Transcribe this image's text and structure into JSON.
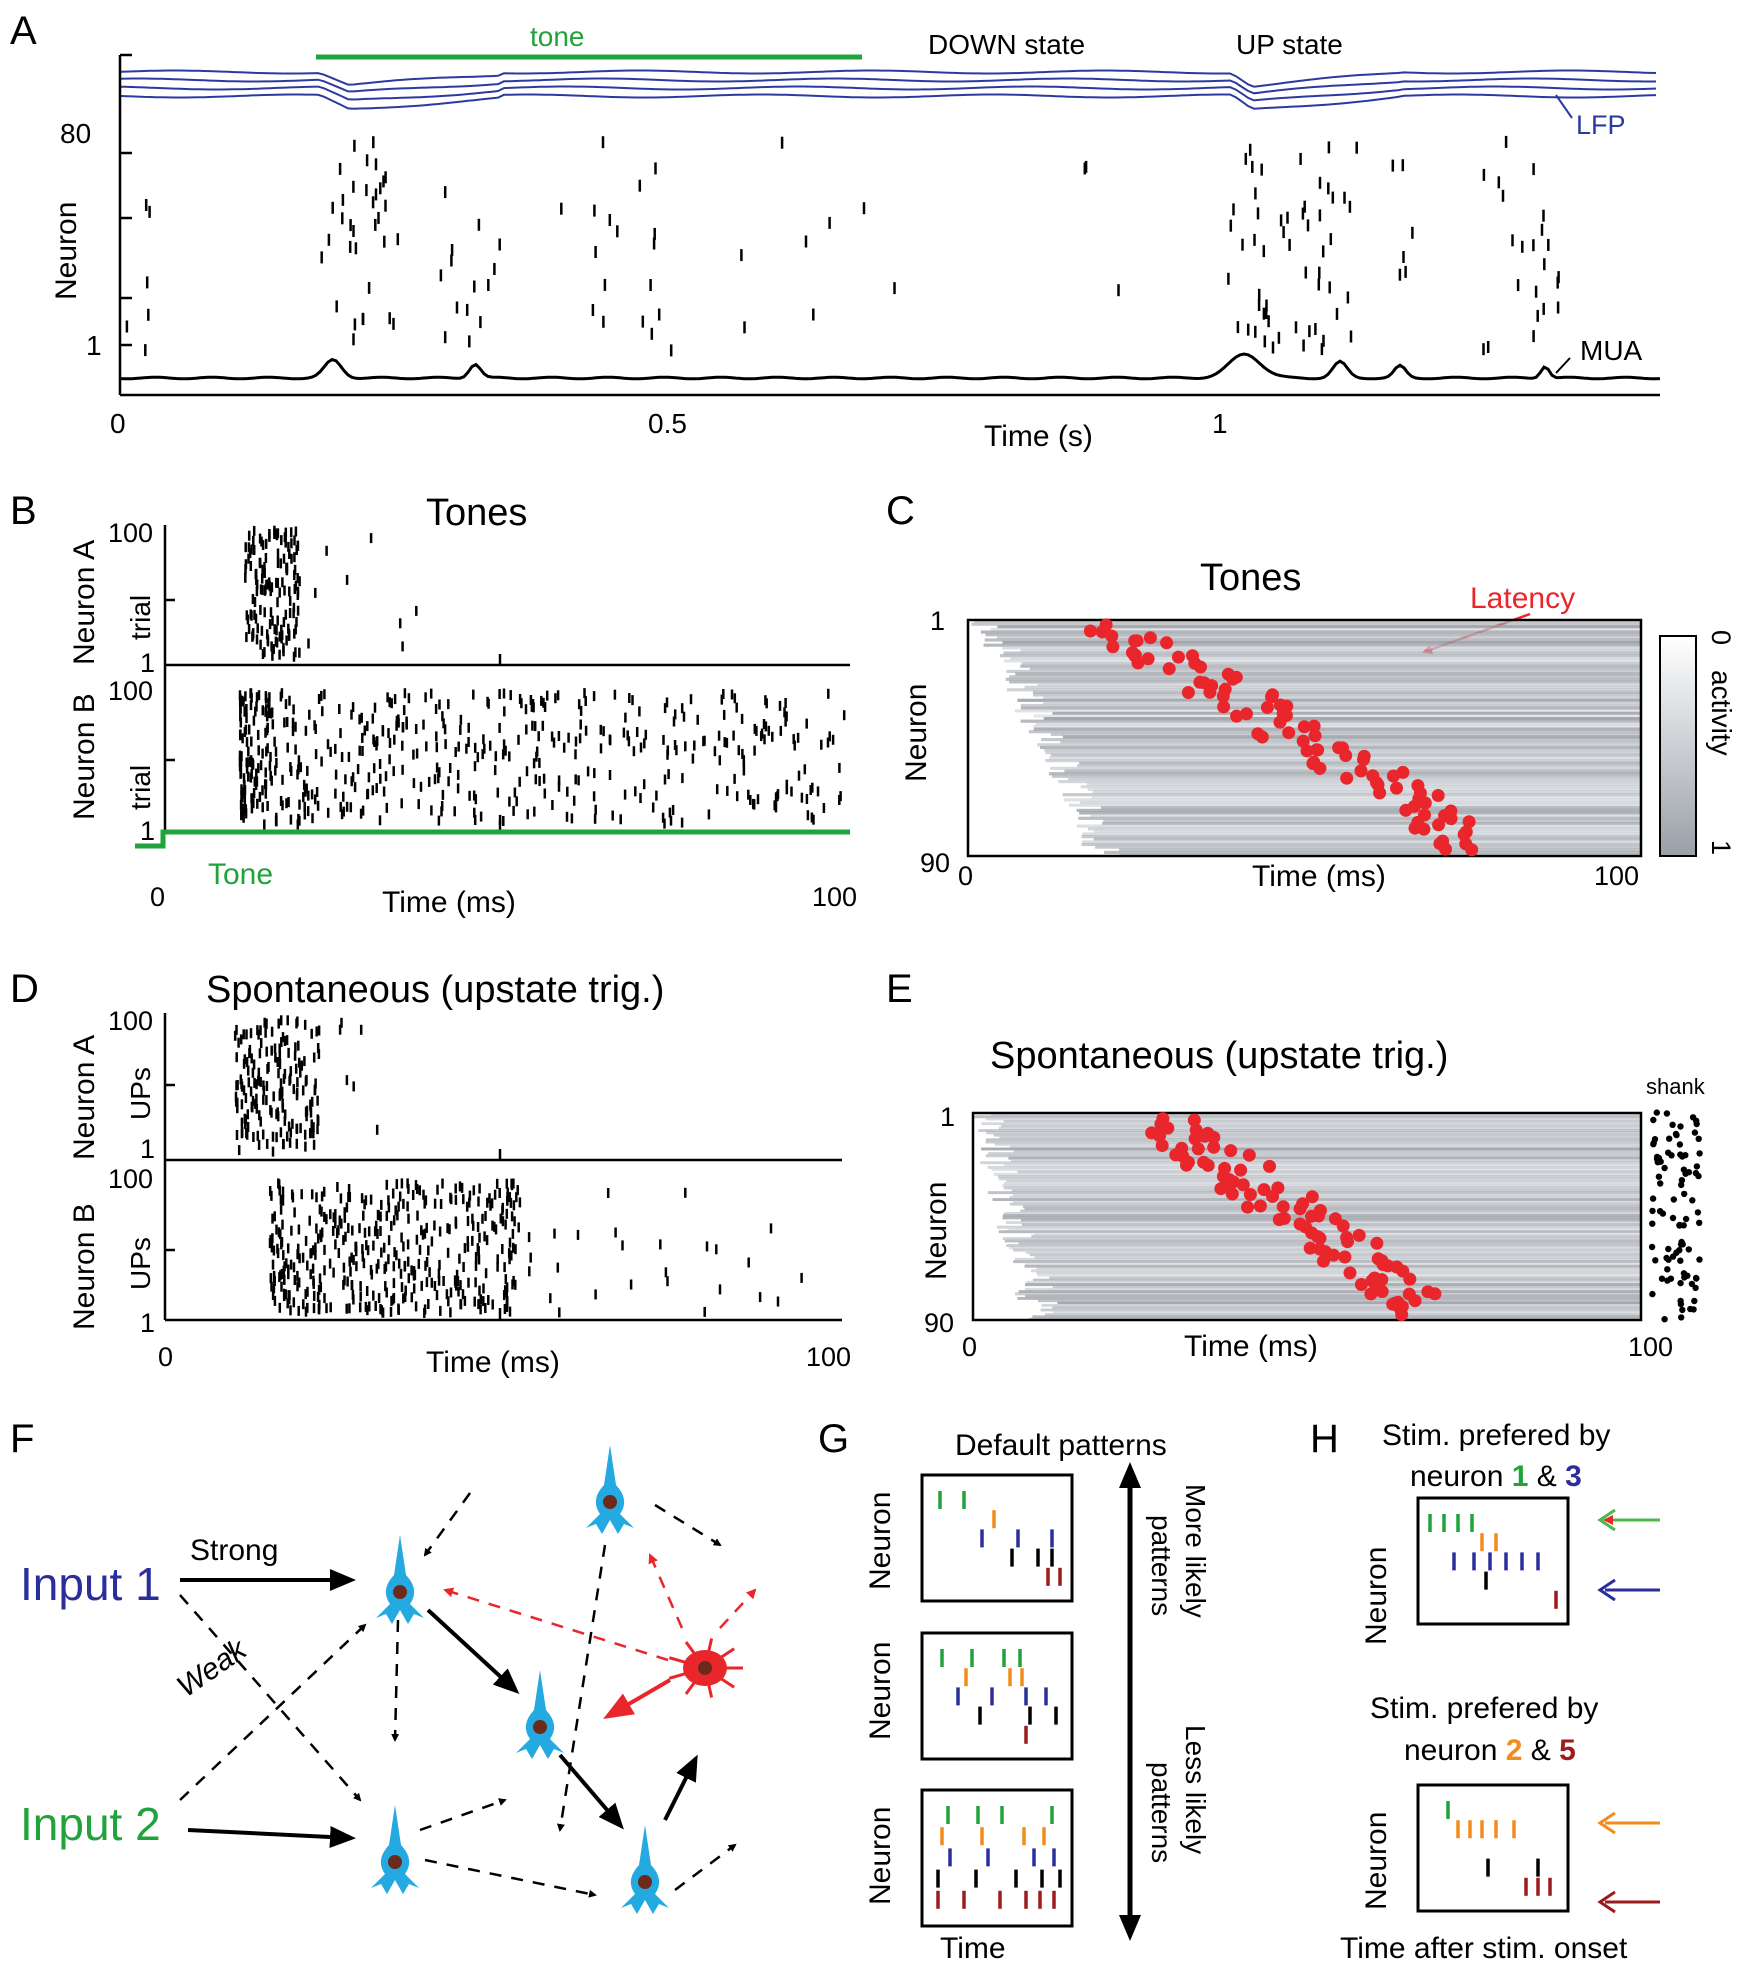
{
  "panels": {
    "A": {
      "letter": "A",
      "tone_label": "tone",
      "down_label": "DOWN state",
      "up_label": "UP state",
      "lfp_label": "LFP",
      "mua_label": "MUA",
      "y_label": "Neuron",
      "y_top": "80",
      "y_bottom": "1",
      "x_ticks": [
        "0",
        "0.5",
        "1"
      ],
      "x_label": "Time (s)"
    },
    "B": {
      "letter": "B",
      "title": "Tones",
      "neuron_a": "Neuron A",
      "neuron_b": "Neuron B",
      "trial_label": "trial",
      "y_top": "100",
      "y_bottom": "1",
      "tone_label": "Tone",
      "x_start": "0",
      "x_end": "100",
      "x_label": "Time (ms)"
    },
    "C": {
      "letter": "C",
      "title": "Tones",
      "latency_label": "Latency",
      "y_label": "Neuron",
      "y_top": "1",
      "y_bottom": "90",
      "x_start": "0",
      "x_end": "100",
      "x_label": "Time (ms)",
      "colorbar_label": "activity",
      "colorbar_min": "0",
      "colorbar_max": "1"
    },
    "D": {
      "letter": "D",
      "title": "Spontaneous (upstate trig.)",
      "neuron_a": "Neuron A",
      "neuron_b": "Neuron B",
      "ups_label": "UPs",
      "y_top": "100",
      "y_bottom": "1",
      "x_start": "0",
      "x_end": "100",
      "x_label": "Time (ms)"
    },
    "E": {
      "letter": "E",
      "title": "Spontaneous (upstate trig.)",
      "shank_label": "shank",
      "y_label": "Neuron",
      "y_top": "1",
      "y_bottom": "90",
      "x_start": "0",
      "x_end": "100",
      "x_label": "Time (ms)"
    },
    "F": {
      "letter": "F",
      "input1": "Input 1",
      "input2": "Input 2",
      "strong": "Strong",
      "weak": "Weak"
    },
    "G": {
      "letter": "G",
      "title": "Default patterns",
      "neuron_label": "Neuron",
      "time_label": "Time",
      "more_likely_1": "More likely",
      "more_likely_2": "patterns",
      "less_likely_1": "Less likely",
      "less_likely_2": "patterns"
    },
    "H": {
      "letter": "H",
      "stim1_line1": "Stim. prefered by",
      "stim1_neuron": "neuron",
      "stim1_n1": "1",
      "stim1_and": "&",
      "stim1_n2": "3",
      "stim2_line1": "Stim. prefered by",
      "stim2_neuron": "neuron",
      "stim2_n1": "2",
      "stim2_and": "&",
      "stim2_n2": "5",
      "neuron_label": "Neuron",
      "time_label": "Time after stim. onset"
    }
  },
  "colors": {
    "green": "#1fa33a",
    "blue": "#2a2e9a",
    "orange": "#f28c1b",
    "darkred": "#9b1c1c",
    "red": "#e8262b",
    "cyan": "#24a9e1",
    "lfp": "#2b3a9e"
  }
}
